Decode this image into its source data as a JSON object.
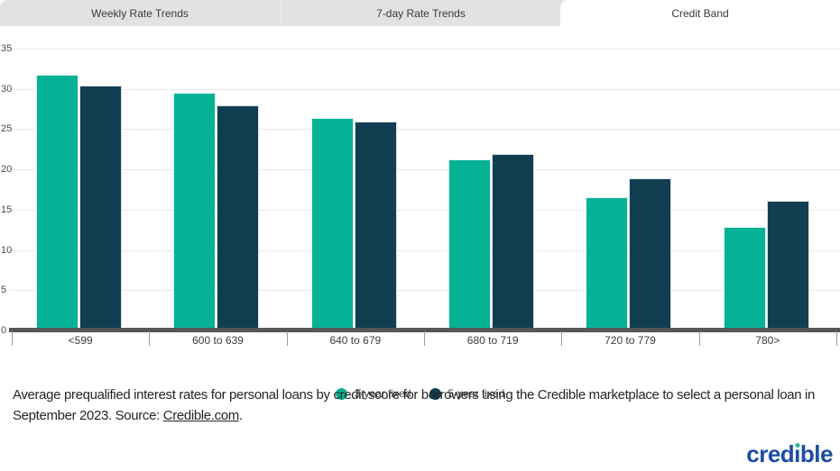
{
  "tabs": [
    {
      "label": "Weekly Rate Trends",
      "active": false
    },
    {
      "label": "7-day Rate Trends",
      "active": false
    },
    {
      "label": "Credit Band",
      "active": true
    }
  ],
  "chart_data": {
    "type": "bar",
    "title": "",
    "categories": [
      "<599",
      "600 to 639",
      "640 to 679",
      "680 to 719",
      "720 to 779",
      "780>"
    ],
    "series": [
      {
        "name": "3-year fixed",
        "color": "#05b296",
        "values": [
          31.8,
          29.5,
          26.4,
          21.3,
          16.6,
          12.9
        ]
      },
      {
        "name": "5-year fixed",
        "color": "#123e52",
        "values": [
          30.4,
          27.9,
          25.9,
          21.9,
          18.9,
          16.1
        ]
      }
    ],
    "xlabel": "",
    "ylabel": "",
    "ylim": [
      0,
      35
    ],
    "yticks": [
      0,
      5,
      10,
      15,
      20,
      25,
      30,
      35
    ],
    "grid": true,
    "legend_position": "bottom-center"
  },
  "caption": {
    "text_before_link": "Average prequalified interest rates for personal loans by credit score for borrowers using the Credible marketplace to select a personal loan in September 2023. Source: ",
    "link_text": "Credible.com",
    "text_after_link": "."
  },
  "logo": {
    "text": "credible",
    "color": "#1d4ca3",
    "dot_color": "#2eb487"
  },
  "colors": {
    "series_3yr": "#05b296",
    "series_5yr": "#123e52",
    "tab_inactive_bg": "#e2e2e2",
    "tab_active_bg": "#ffffff",
    "axis_line": "#55575a",
    "gridline": "#e9e9e9"
  }
}
